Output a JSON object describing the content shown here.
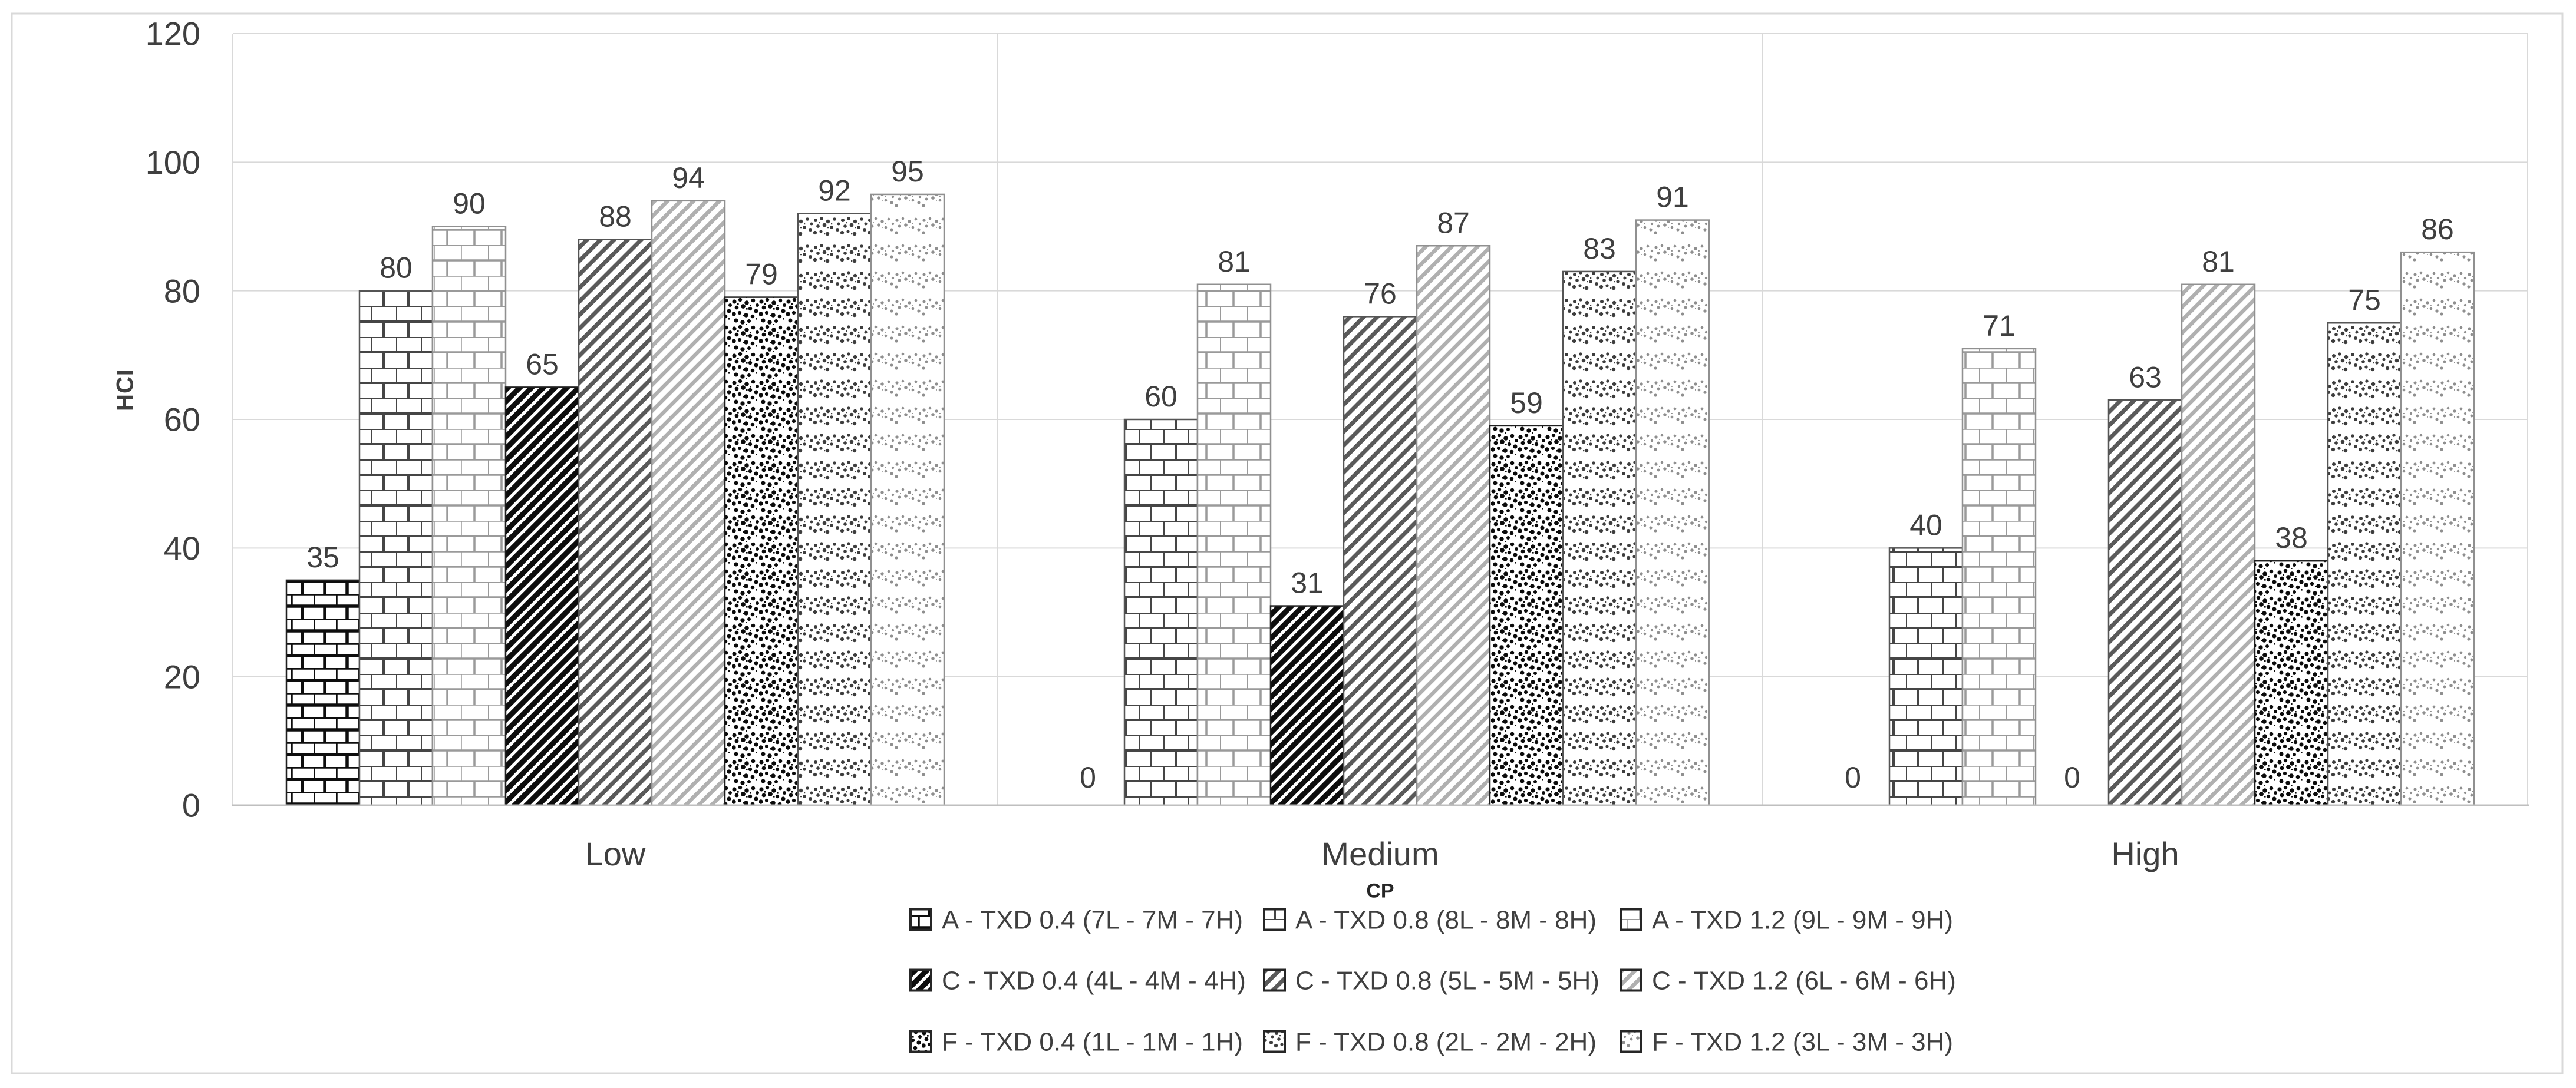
{
  "chart_data": {
    "type": "bar",
    "title": "",
    "ylabel": "HCI",
    "xlabel": "",
    "legend_title": "CP",
    "legend_position": "bottom",
    "grid": true,
    "ylim": [
      0,
      120
    ],
    "yticks": [
      0,
      20,
      40,
      60,
      80,
      100,
      120
    ],
    "categories": [
      "Low",
      "Medium",
      "High"
    ],
    "series": [
      {
        "name": "A - TXD 0.4 (7L - 7M - 7H)",
        "pattern": "brick",
        "shade": "dark",
        "color": "#0d0d0d",
        "values": [
          35,
          0,
          0
        ]
      },
      {
        "name": "A - TXD 0.8 (8L - 8M - 8H)",
        "pattern": "brick",
        "shade": "medium",
        "color": "#454545",
        "values": [
          80,
          60,
          40
        ]
      },
      {
        "name": "A - TXD 1.2 (9L - 9M - 9H)",
        "pattern": "brick",
        "shade": "light",
        "color": "#9a9a9a",
        "values": [
          90,
          81,
          71
        ]
      },
      {
        "name": "C - TXD 0.4 (4L - 4M - 4H)",
        "pattern": "diag",
        "shade": "dark",
        "color": "#0d0d0d",
        "values": [
          65,
          31,
          0
        ]
      },
      {
        "name": "C - TXD 0.8 (5L - 5M - 5H)",
        "pattern": "diag",
        "shade": "medium",
        "color": "#5a5a5a",
        "values": [
          88,
          76,
          63
        ]
      },
      {
        "name": "C - TXD 1.2 (6L - 6M - 6H)",
        "pattern": "diag",
        "shade": "light",
        "color": "#b0b0b0",
        "values": [
          94,
          87,
          81
        ]
      },
      {
        "name": "F - TXD 0.4 (1L - 1M - 1H)",
        "pattern": "speckle",
        "shade": "dark",
        "color": "#0a0a0a",
        "values": [
          79,
          59,
          38
        ]
      },
      {
        "name": "F - TXD 0.8 (2L - 2M - 2H)",
        "pattern": "speckle",
        "shade": "medium",
        "color": "#3d3d3d",
        "values": [
          92,
          83,
          75
        ]
      },
      {
        "name": "F - TXD 1.2 (3L - 3M - 3H)",
        "pattern": "speckle",
        "shade": "light",
        "color": "#8f8f8f",
        "values": [
          95,
          91,
          86
        ]
      }
    ],
    "data_labels": {
      "Low": [
        35,
        80,
        90,
        65,
        88,
        94,
        79,
        92,
        95
      ],
      "Medium": [
        0,
        60,
        81,
        31,
        76,
        87,
        59,
        83,
        91
      ],
      "High": [
        0,
        40,
        71,
        0,
        63,
        81,
        38,
        75,
        86
      ]
    }
  },
  "colors": {
    "text": "#3f3f3f",
    "gridline": "#d9d9d9",
    "axis_line": "#bfbfbf",
    "chart_border": "#d9d9d9",
    "background": "#ffffff"
  }
}
